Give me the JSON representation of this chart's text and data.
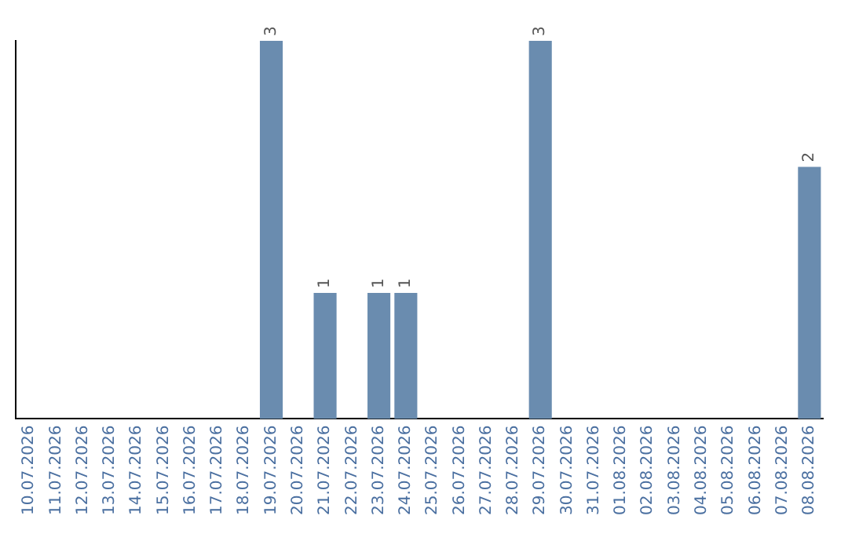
{
  "chart_data": {
    "type": "bar",
    "categories": [
      "10.07.2026",
      "11.07.2026",
      "12.07.2026",
      "13.07.2026",
      "14.07.2026",
      "15.07.2026",
      "16.07.2026",
      "17.07.2026",
      "18.07.2026",
      "19.07.2026",
      "20.07.2026",
      "21.07.2026",
      "22.07.2026",
      "23.07.2026",
      "24.07.2026",
      "25.07.2026",
      "26.07.2026",
      "27.07.2026",
      "28.07.2026",
      "29.07.2026",
      "30.07.2026",
      "31.07.2026",
      "01.08.2026",
      "02.08.2026",
      "03.08.2026",
      "04.08.2026",
      "05.08.2026",
      "06.08.2026",
      "07.08.2026",
      "08.08.2026"
    ],
    "values": [
      0,
      0,
      0,
      0,
      0,
      0,
      0,
      0,
      0,
      3,
      0,
      1,
      0,
      1,
      1,
      0,
      0,
      0,
      0,
      3,
      0,
      0,
      0,
      0,
      0,
      0,
      0,
      0,
      0,
      2
    ],
    "value_labels": [
      null,
      null,
      null,
      null,
      null,
      null,
      null,
      null,
      null,
      "3",
      null,
      "1",
      null,
      "1",
      "1",
      null,
      null,
      null,
      null,
      "3",
      null,
      null,
      null,
      null,
      null,
      null,
      null,
      null,
      null,
      "2"
    ],
    "color": "#6a8caf",
    "grid": false,
    "legend": false,
    "tick_labels": "x"
  }
}
